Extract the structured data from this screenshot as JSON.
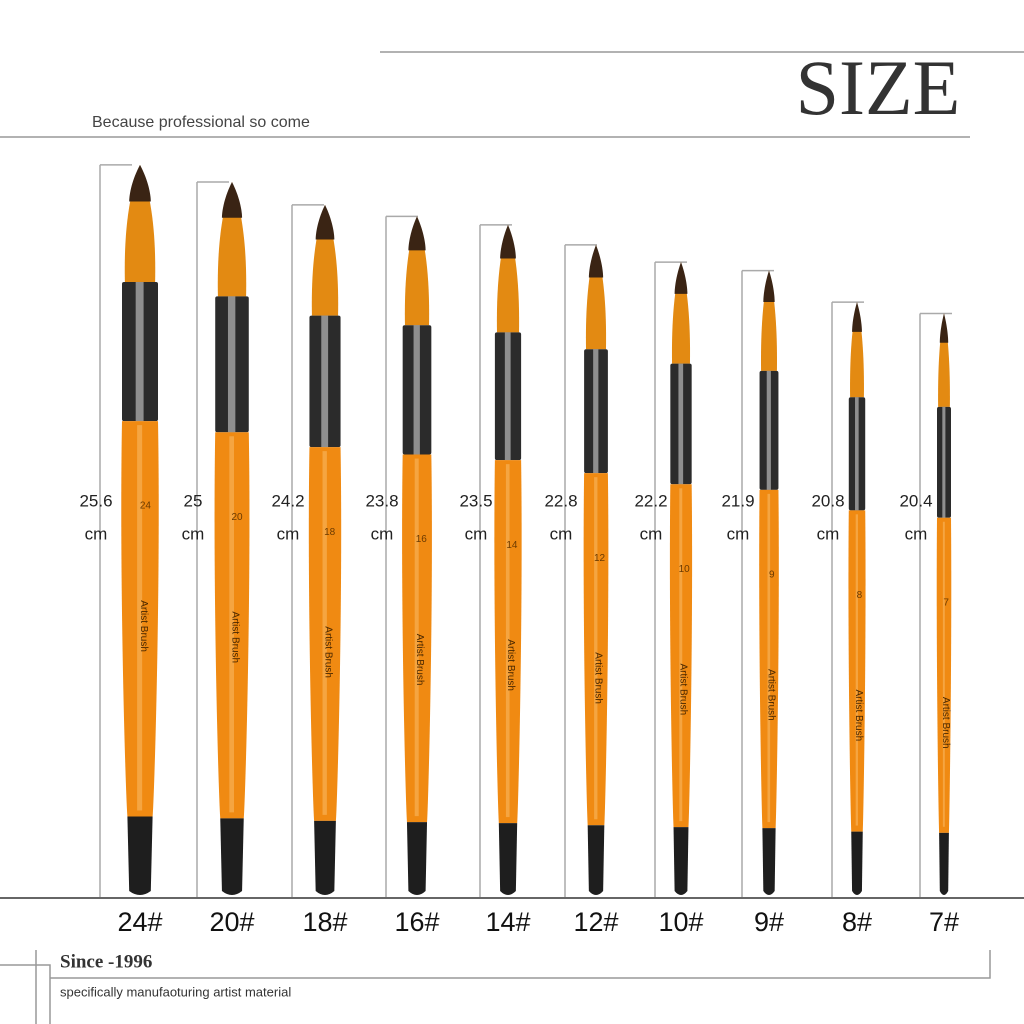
{
  "header": {
    "title": "SIZE",
    "subtitle": "Because professional so come"
  },
  "unit": "cm",
  "handle_text": "Artist Brush",
  "brushes": [
    {
      "size": "24#",
      "number": "24",
      "length": 25.6
    },
    {
      "size": "20#",
      "number": "20",
      "length": 25
    },
    {
      "size": "18#",
      "number": "18",
      "length": 24.2
    },
    {
      "size": "16#",
      "number": "16",
      "length": 23.8
    },
    {
      "size": "14#",
      "number": "14",
      "length": 23.5
    },
    {
      "size": "12#",
      "number": "12",
      "length": 22.8
    },
    {
      "size": "10#",
      "number": "10",
      "length": 22.2
    },
    {
      "size": "9#",
      "number": "9",
      "length": 21.9
    },
    {
      "size": "8#",
      "number": "8",
      "length": 20.8
    },
    {
      "size": "7#",
      "number": "7",
      "length": 20.4
    }
  ],
  "footer": {
    "since": "Since -1996",
    "tagline": "specifically manufaoturing artist material"
  }
}
